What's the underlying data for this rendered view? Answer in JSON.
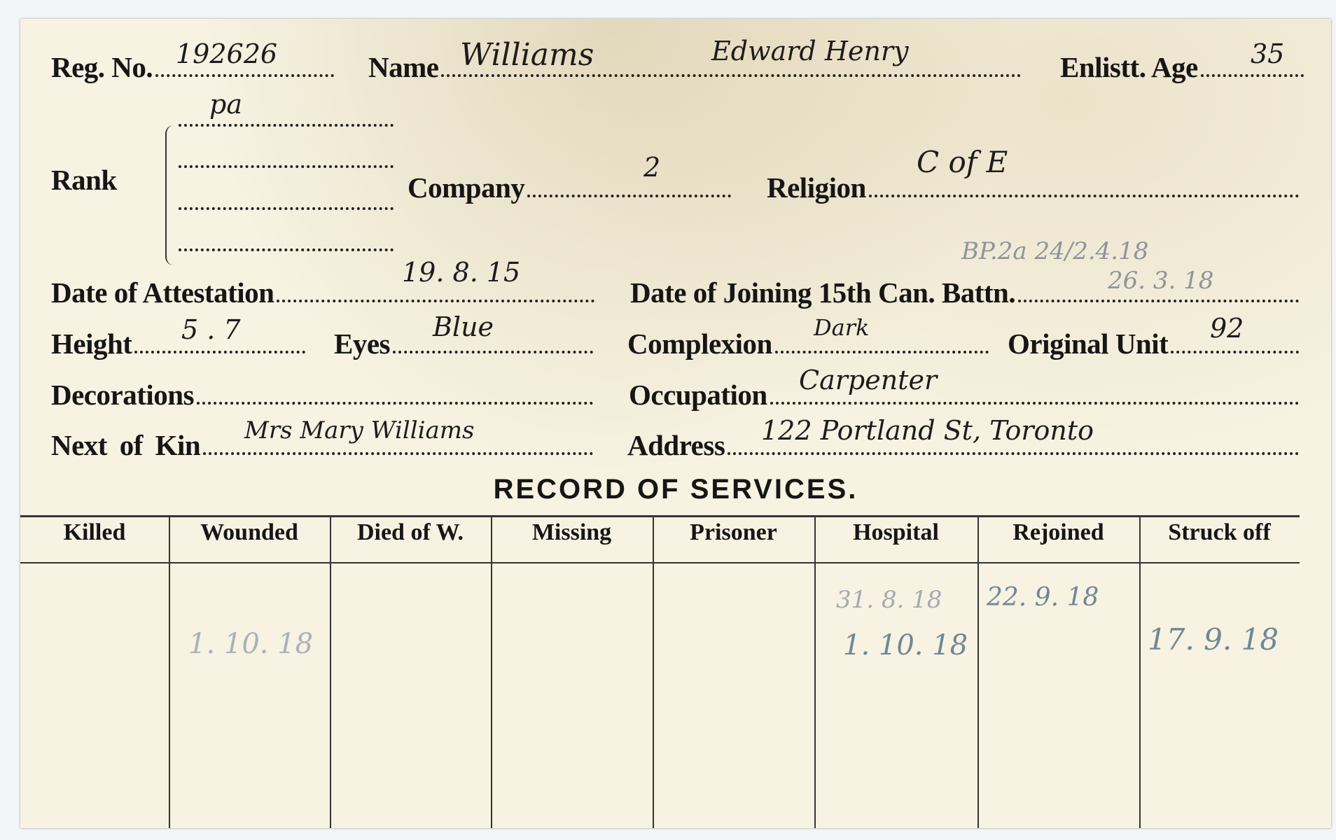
{
  "form": {
    "reg_no": {
      "label": "Reg. No.",
      "value": "192626"
    },
    "name": {
      "label": "Name",
      "surname": "Williams",
      "given_names": "Edward Henry"
    },
    "enlist_age": {
      "label": "Enlistt. Age",
      "value": "35"
    },
    "rank": {
      "label": "Rank",
      "value": "pa"
    },
    "company": {
      "label": "Company",
      "value": "2"
    },
    "religion": {
      "label": "Religion",
      "value": "C of E"
    },
    "pencil_note": "BP.2a 24/2.4.18",
    "attestation": {
      "label": "Date of Attestation",
      "value": "19. 8. 15"
    },
    "joining": {
      "label": "Date of Joining 15th Can. Battn.",
      "value": "26. 3. 18"
    },
    "height": {
      "label": "Height",
      "value": "5 . 7"
    },
    "eyes": {
      "label": "Eyes",
      "value": "Blue"
    },
    "complexion": {
      "label": "Complexion",
      "value": "Dark"
    },
    "original_unit": {
      "label": "Original Unit",
      "value": "92"
    },
    "decorations": {
      "label": "Decorations",
      "value": ""
    },
    "occupation": {
      "label": "Occupation",
      "value": "Carpenter"
    },
    "next_of_kin": {
      "label": "Next of Kin",
      "value": "Mrs Mary Williams"
    },
    "address": {
      "label": "Address",
      "value": "122 Portland St, Toronto"
    }
  },
  "record": {
    "title": "RECORD OF SERVICES.",
    "columns": [
      "Killed",
      "Wounded",
      "Died of W.",
      "Missing",
      "Prisoner",
      "Hospital",
      "Rejoined",
      "Struck off"
    ],
    "entries": {
      "wounded": [
        "1. 10. 18"
      ],
      "hospital": [
        "31. 8. 18",
        "1. 10. 18"
      ],
      "rejoined": [
        "22. 9. 18"
      ],
      "struck_off": [
        "17. 9. 18"
      ]
    }
  },
  "colors": {
    "card": "#f7f2e2",
    "ink": "#161616",
    "pencil": "#8e959c",
    "blue_pencil": "#6f8796"
  }
}
